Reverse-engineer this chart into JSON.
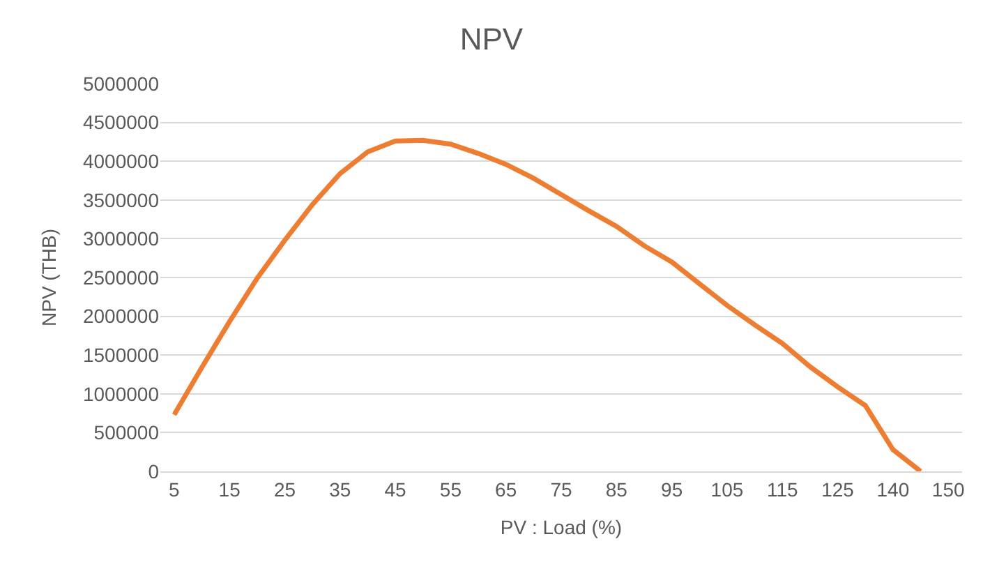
{
  "chart_data": {
    "type": "line",
    "title": "NPV",
    "xlabel": "PV : Load (%)",
    "ylabel": "NPV (THB)",
    "categories": [
      "5",
      null,
      "15",
      null,
      "25",
      null,
      "35",
      null,
      "45",
      null,
      "55",
      null,
      "65",
      null,
      "75",
      null,
      "85",
      null,
      "95",
      null,
      "105",
      null,
      "115",
      null,
      "125",
      null,
      "140",
      null,
      "150"
    ],
    "series": [
      {
        "color": "#ed7d31",
        "values": [
          730000,
          1340000,
          1930000,
          2490000,
          2980000,
          3440000,
          3840000,
          4120000,
          4260000,
          4270000,
          4220000,
          4100000,
          3960000,
          3780000,
          3570000,
          3360000,
          3160000,
          2910000,
          2700000,
          2420000,
          2140000,
          1890000,
          1650000,
          1350000,
          1090000,
          850000,
          280000,
          0,
          null
        ]
      }
    ],
    "ylim": [
      0,
      5000000
    ],
    "yticks": [
      0,
      500000,
      1000000,
      1500000,
      2000000,
      2500000,
      3000000,
      3500000,
      4000000,
      4500000,
      5000000
    ],
    "grid": "y",
    "legend": false,
    "marker": "none",
    "line_style": "solid"
  }
}
